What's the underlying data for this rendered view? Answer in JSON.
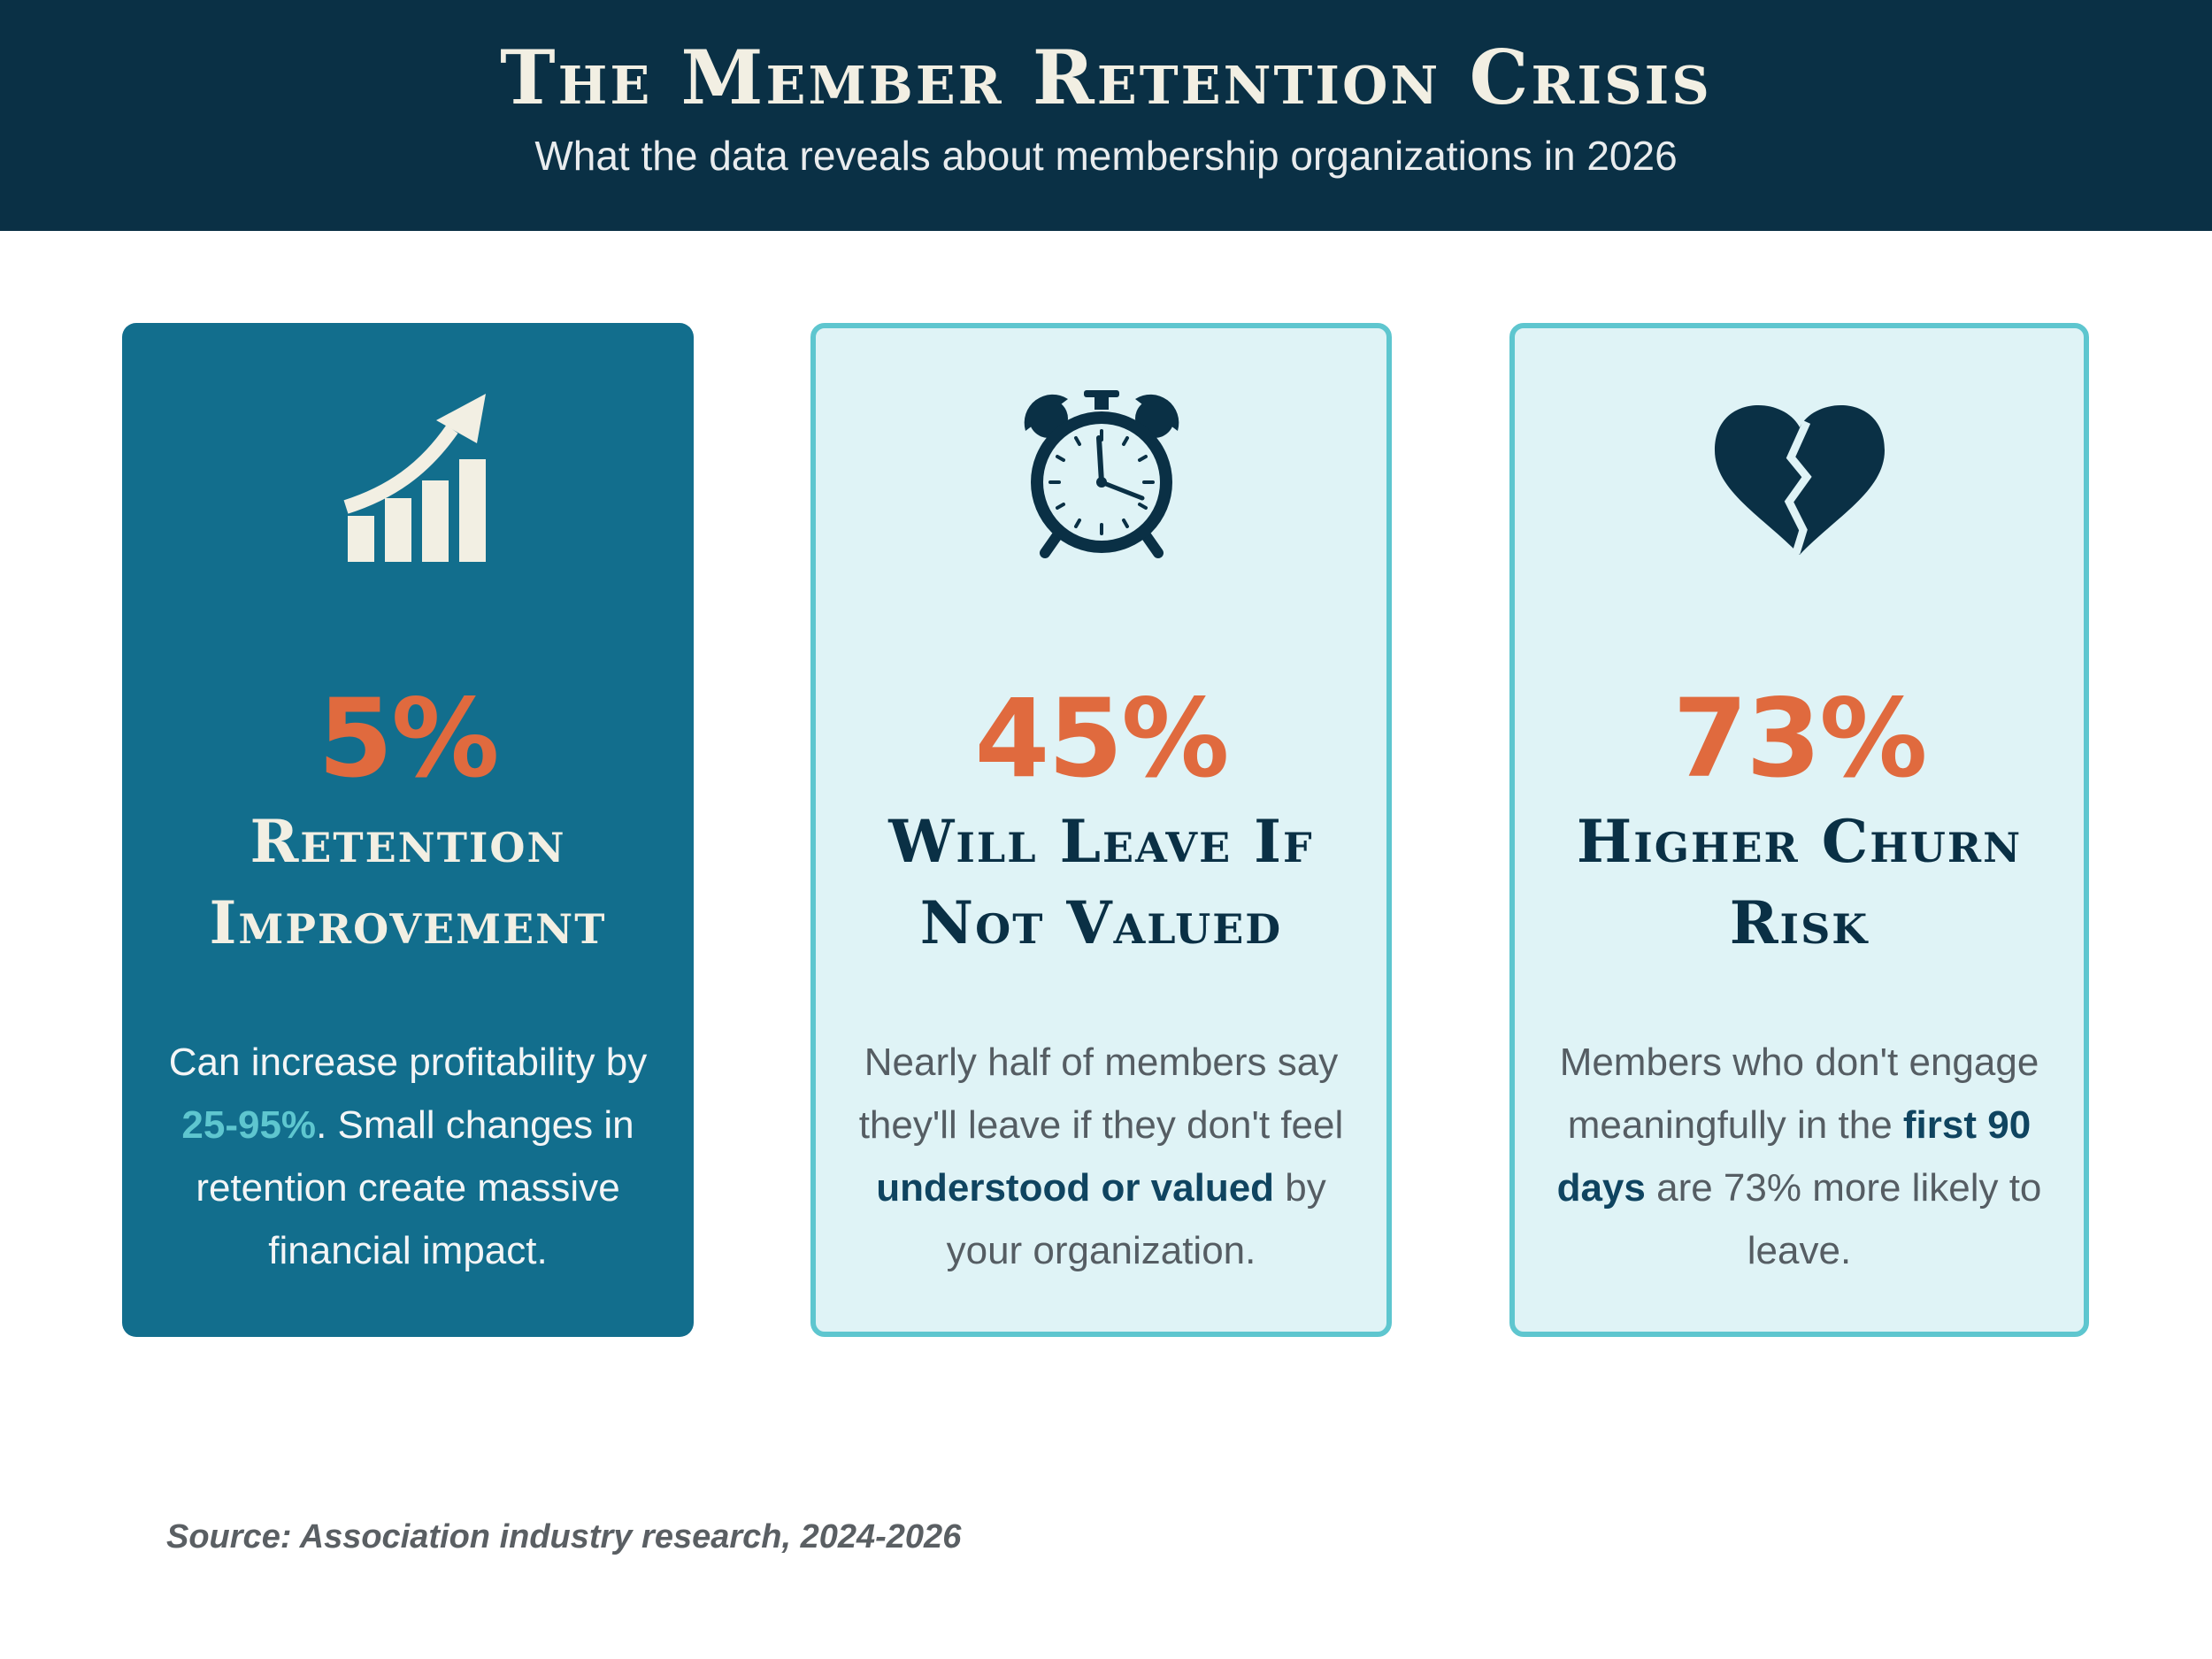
{
  "header": {
    "title": "The Member Retention Crisis",
    "subtitle": "What the data reveals about membership organizations in 2026"
  },
  "colors": {
    "header_bg": "#0a3045",
    "card_primary_bg": "#126e8d",
    "card_light_bg": "#dff3f6",
    "card_border": "#5ec6cf",
    "stat_accent": "#e06a3e",
    "highlight_light": "#5ec6cf",
    "highlight_dark": "#0f4460"
  },
  "cards": [
    {
      "icon": "growth-chart-icon",
      "stat": "5%",
      "label": "Retention Improvement",
      "desc": {
        "pre": "Can increase profitability by ",
        "highlight": "25-95%",
        "post": ". Small changes in retention create massive financial impact."
      }
    },
    {
      "icon": "alarm-clock-icon",
      "stat": "45%",
      "label": "Will Leave If Not Valued",
      "desc": {
        "pre": "Nearly half of members say they'll leave if they don't feel ",
        "highlight": "understood or valued",
        "post": " by your organization."
      }
    },
    {
      "icon": "broken-heart-icon",
      "stat": "73%",
      "label": "Higher Churn Risk",
      "desc": {
        "pre": "Members who don't engage meaningfully in the ",
        "highlight": "first 90 days",
        "post": " are 73% more likely to leave."
      }
    }
  ],
  "source": "Source: Association industry research, 2024-2026"
}
